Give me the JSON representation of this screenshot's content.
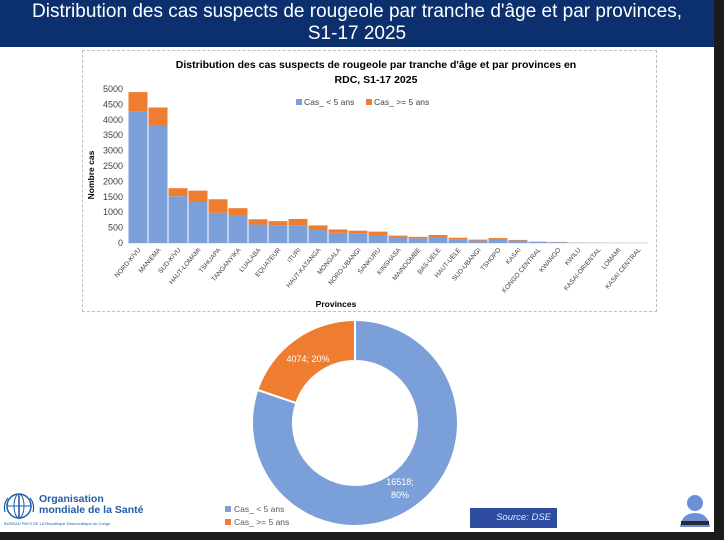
{
  "slide": {
    "title_line1": "Distribution des cas suspects de rougeole par tranche d'âge et par provinces,",
    "title_line2": "S1-17 2025"
  },
  "chart_data": [
    {
      "type": "bar",
      "stacked": true,
      "title_line1": "Distribution des cas suspects de rougeole par tranche d'âge et par provinces en",
      "title_line2": "RDC, S1-17 2025",
      "xlabel": "Provinces",
      "ylabel": "Nombre cas",
      "ylim": [
        0,
        5000
      ],
      "yticks": [
        "0",
        "500",
        "1000",
        "1500",
        "2000",
        "2500",
        "3000",
        "3500",
        "4000",
        "4500",
        "5000"
      ],
      "legend_position": "top",
      "categories": [
        "NORD-KIVU",
        "MANIEMA",
        "SUD-KIVU",
        "HAUT-LOMAMI",
        "TSHUAPA",
        "TANGANYIKA",
        "LUALABA",
        "EQUATEUR",
        "ITURI",
        "HAUT-KATANGA",
        "MONGALA",
        "NORD-UBANGI",
        "SANKURU",
        "KINSHASA",
        "MAINDOMBE",
        "BAS-UELE",
        "HAUT-UELE",
        "SUD-UBANGI",
        "TSHOPO",
        "KASAI",
        "KONGO CENTRAL",
        "KWANGO",
        "KWILU",
        "KASAI-ORIENTAL",
        "LOMAMI",
        "KASAI CENTRAL"
      ],
      "series": [
        {
          "name": "Cas_ < 5 ans",
          "color": "#7b9fd8",
          "values": [
            4260,
            3800,
            1520,
            1330,
            980,
            880,
            600,
            560,
            560,
            420,
            330,
            300,
            260,
            180,
            150,
            180,
            120,
            80,
            100,
            80,
            35,
            25,
            8,
            4,
            3,
            2
          ]
        },
        {
          "name": "Cas_ >= 5 ans",
          "color": "#ee7d31",
          "values": [
            640,
            600,
            260,
            370,
            440,
            250,
            170,
            150,
            220,
            150,
            110,
            100,
            110,
            60,
            50,
            80,
            50,
            30,
            60,
            20,
            10,
            10,
            4,
            2,
            1,
            1
          ]
        }
      ]
    },
    {
      "type": "pie",
      "donut": true,
      "legend_position": "bottom-left",
      "slices": [
        {
          "label": "Cas_ < 5 ans",
          "value": 16518,
          "percent": "80%",
          "data_label": "16518;",
          "data_label2": "80%",
          "color": "#7b9fd8"
        },
        {
          "label": "Cas_ >= 5 ans",
          "value": 4074,
          "percent": "20%",
          "data_label": "4074; 20%",
          "color": "#ee7d31"
        }
      ]
    }
  ],
  "footer": {
    "logo_name_line1": "Organisation",
    "logo_name_line2": "mondiale de la Santé",
    "logo_subtitle": "BUREAU PAYS DE LA  République Démocratique du Congo",
    "source": "Source: DSE"
  }
}
